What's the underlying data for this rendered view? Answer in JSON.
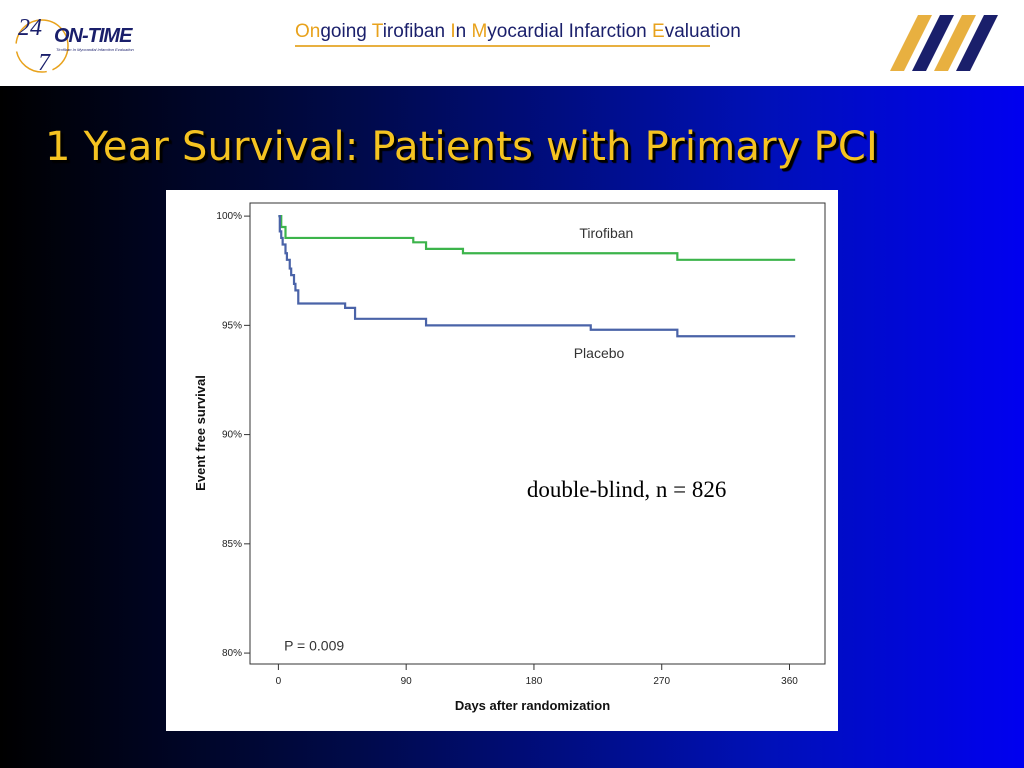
{
  "header": {
    "logo_number_top": "24",
    "logo_number_bottom": "7",
    "logo_text": "ON-TIME",
    "logo_subtext": "Tirofiban In Myocardial Infarction Evaluation",
    "title_segments": [
      {
        "text": "On",
        "accent": true
      },
      {
        "text": "going ",
        "accent": false
      },
      {
        "text": "T",
        "accent": true
      },
      {
        "text": "irofiban ",
        "accent": false
      },
      {
        "text": "I",
        "accent": true
      },
      {
        "text": "n ",
        "accent": false
      },
      {
        "text": "M",
        "accent": true
      },
      {
        "text": "yocardial Infarction ",
        "accent": false
      },
      {
        "text": "E",
        "accent": true
      },
      {
        "text": "valuation",
        "accent": false
      }
    ]
  },
  "slide": {
    "title": "1 Year Survival: Patients with Primary PCI"
  },
  "colors": {
    "title_text": "#f5c321",
    "header_navy": "#1a1f6b",
    "header_gold": "#e8a21c",
    "tirofiban_line": "#3cb44b",
    "placebo_line": "#4a63a8"
  },
  "chart_data": {
    "type": "line",
    "xlabel": "Days after randomization",
    "ylabel": "Event free survival",
    "xlim": [
      -20,
      385
    ],
    "ylim": [
      79.5,
      100.6
    ],
    "x_ticks": [
      0,
      90,
      180,
      270,
      360
    ],
    "x_tick_labels": [
      "0",
      "90",
      "180",
      "270",
      "360"
    ],
    "y_ticks": [
      80,
      85,
      90,
      95,
      100
    ],
    "y_tick_labels": [
      "80%",
      "85%",
      "90%",
      "95%",
      "100%"
    ],
    "grid": false,
    "step": true,
    "series": [
      {
        "name": "Tirofiban",
        "color": "#3cb44b",
        "x": [
          0,
          2,
          5,
          95,
          104,
          130,
          281,
          364
        ],
        "y": [
          100,
          99.5,
          99.0,
          98.8,
          98.5,
          98.3,
          98.0,
          98.0
        ]
      },
      {
        "name": "Placebo",
        "color": "#4a63a8",
        "x": [
          0,
          1,
          2,
          3,
          5,
          6,
          8,
          9,
          11,
          12,
          14,
          47,
          54,
          104,
          220,
          281,
          364
        ],
        "y": [
          100,
          99.3,
          99.0,
          98.7,
          98.3,
          98.0,
          97.6,
          97.3,
          96.9,
          96.6,
          96.0,
          95.8,
          95.3,
          95.0,
          94.8,
          94.5,
          94.5
        ]
      }
    ],
    "annotations": [
      {
        "text": "Tirofiban",
        "x": 212,
        "y": 99.0
      },
      {
        "text": "Placebo",
        "x": 208,
        "y": 93.5
      },
      {
        "text": "P = 0.009",
        "x": 4,
        "y": 80.3
      },
      {
        "text": "double-blind, n = 826",
        "x": 175,
        "y": 87.5
      }
    ]
  }
}
